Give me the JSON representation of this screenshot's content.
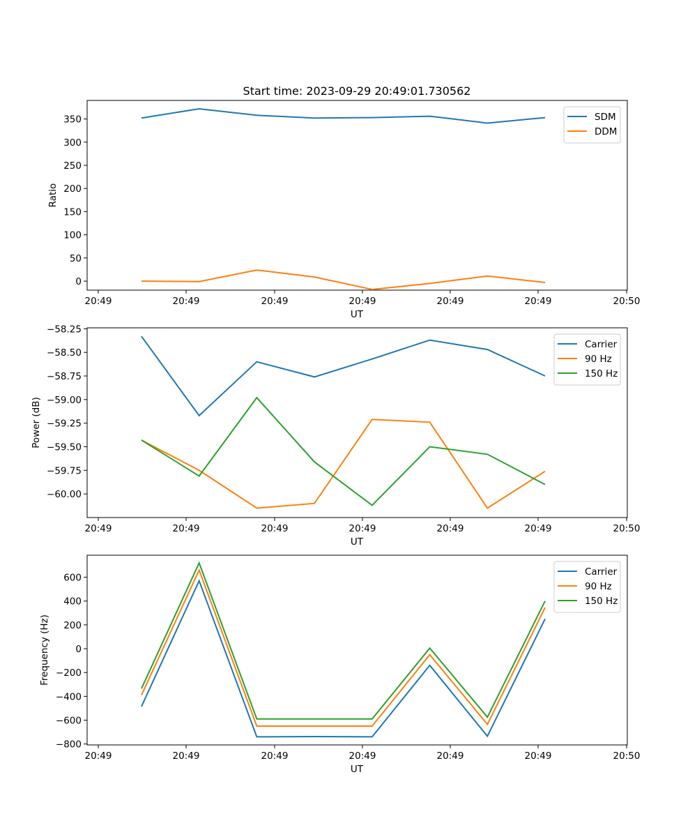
{
  "chart_data": [
    {
      "type": "line",
      "title": "Start time: 2023-09-29 20:49:01.730562",
      "xlabel": "UT",
      "ylabel": "Ratio",
      "x_tick_labels": [
        "20:49",
        "20:49",
        "20:49",
        "20:49",
        "20:49",
        "20:49",
        "20:49",
        "20:50"
      ],
      "y_ticks": [
        0,
        50,
        100,
        150,
        200,
        250,
        300,
        350
      ],
      "ylim": [
        -19.5,
        390
      ],
      "x_index_range": [
        -0.75,
        8.45
      ],
      "x": [
        0,
        1,
        2,
        3,
        4,
        5,
        6,
        7
      ],
      "series": [
        {
          "name": "SDM",
          "color": "#1f77b4",
          "values": [
            352,
            372,
            358,
            352,
            353,
            356,
            341,
            353
          ]
        },
        {
          "name": "DDM",
          "color": "#ff7f0e",
          "values": [
            0,
            -1,
            24,
            9,
            -18,
            -5,
            11,
            -3
          ]
        }
      ],
      "legend": "top-right",
      "grid": false
    },
    {
      "type": "line",
      "title": "",
      "xlabel": "UT",
      "ylabel": "Power (dB)",
      "x_tick_labels": [
        "20:49",
        "20:49",
        "20:49",
        "20:49",
        "20:49",
        "20:49",
        "20:49",
        "20:50"
      ],
      "y_ticks": [
        -60.0,
        -59.75,
        -59.5,
        -59.25,
        -59.0,
        -58.75,
        -58.5,
        -58.25
      ],
      "y_tick_labels": [
        "−60.00",
        "−59.75",
        "−59.50",
        "−59.25",
        "−59.00",
        "−58.75",
        "−58.50",
        "−58.25"
      ],
      "ylim": [
        -60.25,
        -58.24
      ],
      "x_index_range": [
        -0.75,
        8.45
      ],
      "x": [
        0,
        1,
        2,
        3,
        4,
        5,
        6,
        7
      ],
      "series": [
        {
          "name": "Carrier",
          "color": "#1f77b4",
          "values": [
            -58.33,
            -59.17,
            -58.6,
            -58.76,
            -58.57,
            -58.37,
            -58.47,
            -58.75
          ]
        },
        {
          "name": "90 Hz",
          "color": "#ff7f0e",
          "values": [
            -59.43,
            -59.75,
            -60.15,
            -60.1,
            -59.21,
            -59.24,
            -60.15,
            -59.76
          ]
        },
        {
          "name": "150 Hz",
          "color": "#2ca02c",
          "values": [
            -59.43,
            -59.81,
            -58.98,
            -59.66,
            -60.12,
            -59.5,
            -59.58,
            -59.9
          ]
        }
      ],
      "legend": "top-right",
      "grid": false
    },
    {
      "type": "line",
      "title": "",
      "xlabel": "UT",
      "ylabel": "Frequency (Hz)",
      "x_tick_labels": [
        "20:49",
        "20:49",
        "20:49",
        "20:49",
        "20:49",
        "20:49",
        "20:49",
        "20:50"
      ],
      "y_ticks": [
        -800,
        -600,
        -400,
        -200,
        0,
        200,
        400,
        600
      ],
      "y_tick_labels": [
        "−800",
        "−600",
        "−400",
        "−200",
        "0",
        "200",
        "400",
        "600"
      ],
      "ylim": [
        -808,
        785
      ],
      "x_index_range": [
        -0.75,
        8.45
      ],
      "x": [
        0,
        1,
        2,
        3,
        4,
        5,
        6,
        7
      ],
      "series": [
        {
          "name": "Carrier",
          "color": "#1f77b4",
          "values": [
            -485,
            570,
            -740,
            -738,
            -740,
            -140,
            -735,
            250
          ]
        },
        {
          "name": "90 Hz",
          "color": "#ff7f0e",
          "values": [
            -390,
            660,
            -650,
            -650,
            -650,
            -50,
            -635,
            345
          ]
        },
        {
          "name": "150 Hz",
          "color": "#2ca02c",
          "values": [
            -335,
            720,
            -590,
            -590,
            -590,
            5,
            -575,
            400
          ]
        }
      ],
      "legend": "top-right",
      "grid": false
    }
  ]
}
